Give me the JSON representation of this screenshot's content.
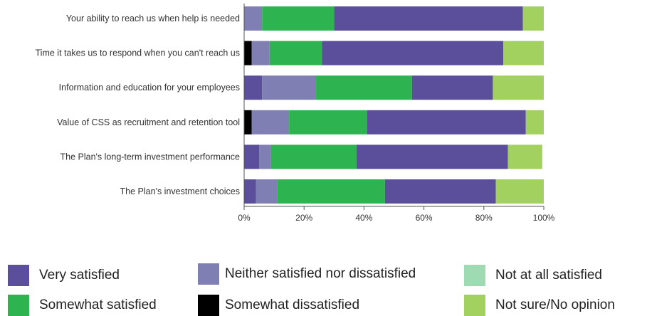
{
  "chart_data": {
    "type": "bar",
    "orientation": "horizontal",
    "stacked": "percent",
    "categories": [
      "Your ability to reach us when help is needed",
      "Time it takes us to respond when you can't reach us",
      "Information and education for your employees",
      "Value of CSS as recruitment and retention tool",
      "The Plan's long-term investment performance",
      "The Plan's investment choices"
    ],
    "series": [
      {
        "name": "Somewhat dissatisfied",
        "color": "#000000",
        "values": [
          0,
          2.5,
          0,
          2.5,
          0,
          0
        ]
      },
      {
        "name": "Very satisfied",
        "color": "#5b4f9c",
        "values": [
          0,
          0,
          6,
          0,
          5,
          4
        ]
      },
      {
        "name": "Neither satisfied nor dissatisfied",
        "color": "#7f7fb3",
        "values": [
          6,
          6,
          18,
          12.5,
          4,
          7
        ]
      },
      {
        "name": "Somewhat satisfied",
        "color": "#2db34f",
        "values": [
          24,
          17.5,
          32,
          26,
          28.5,
          36
        ]
      },
      {
        "name": "Very satisfied",
        "color": "#5b4f9c",
        "values": [
          63,
          60.5,
          27,
          53,
          50.5,
          37
        ]
      },
      {
        "name": "Not at all satisfied",
        "color": "#9edbb2",
        "values": [
          0,
          0,
          0,
          0,
          0,
          0
        ]
      },
      {
        "name": "Not sure/No opinion",
        "color": "#a3d160",
        "values": [
          7,
          13.5,
          17,
          6,
          11.5,
          16
        ]
      }
    ],
    "x_ticks": [
      "0%",
      "20%",
      "40%",
      "60%",
      "80%",
      "100%"
    ],
    "xlim": [
      0,
      100
    ],
    "grid": false,
    "legend_position": "bottom"
  },
  "legend": [
    {
      "label": "Very satisfied",
      "color": "#5b4f9c"
    },
    {
      "label": "Neither satisfied nor dissatisfied",
      "color": "#7f7fb3"
    },
    {
      "label": "Not at all satisfied",
      "color": "#9edbb2"
    },
    {
      "label": "Somewhat satisfied",
      "color": "#2db34f"
    },
    {
      "label": "Somewhat dissatisfied",
      "color": "#000000"
    },
    {
      "label": "Not sure/No opinion",
      "color": "#a3d160"
    }
  ]
}
